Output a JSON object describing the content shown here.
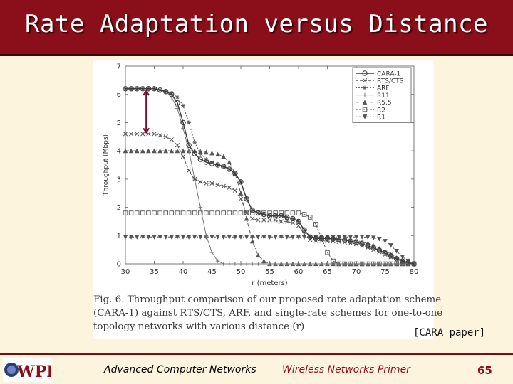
{
  "slide": {
    "title": "Rate Adaptation versus Distance",
    "source_label": "[CARA paper]",
    "footer_left": "Advanced Computer Networks",
    "footer_mid": "Wireless Networks Primer",
    "page_number": "65",
    "logo_text": "WPI"
  },
  "colors": {
    "title_bar": "#8b0f1a",
    "background": "#fcf4dd",
    "accent_arrow": "#7a1030"
  },
  "figure": {
    "caption_lines": [
      "Fig. 6.    Throughput comparison of our proposed rate adaptation scheme",
      "(CARA-1) against RTS/CTS, ARF, and single-rate schemes for one-to-one",
      "topology networks with various distance (r)"
    ]
  },
  "chart_data": {
    "type": "line",
    "xlabel": "r (meters)",
    "ylabel": "Throughput (Mbps)",
    "xlim": [
      30,
      80
    ],
    "ylim": [
      0,
      7
    ],
    "xticks": [
      30,
      35,
      40,
      45,
      50,
      55,
      60,
      65,
      70,
      75,
      80
    ],
    "yticks": [
      0,
      1,
      2,
      3,
      4,
      5,
      6,
      7
    ],
    "legend_position": "top-right",
    "grid": false,
    "annotation": "arrow between approx. 4.6 and 6.2 Mbps at r≈33",
    "x": [
      30,
      31,
      32,
      33,
      34,
      35,
      36,
      37,
      38,
      39,
      40,
      41,
      42,
      43,
      44,
      45,
      46,
      47,
      48,
      49,
      50,
      51,
      52,
      53,
      54,
      55,
      56,
      57,
      58,
      59,
      60,
      61,
      62,
      63,
      64,
      65,
      66,
      67,
      68,
      69,
      70,
      71,
      72,
      73,
      74,
      75,
      76,
      77,
      78,
      79,
      80
    ],
    "series": [
      {
        "name": "CARA-1",
        "marker": "circle",
        "values": [
          6.2,
          6.2,
          6.2,
          6.2,
          6.2,
          6.2,
          6.15,
          6.1,
          6.0,
          5.7,
          5.0,
          4.2,
          3.9,
          3.7,
          3.6,
          3.55,
          3.5,
          3.45,
          3.35,
          3.2,
          2.9,
          2.3,
          1.9,
          1.8,
          1.75,
          1.7,
          1.7,
          1.7,
          1.65,
          1.6,
          1.5,
          1.2,
          0.95,
          0.9,
          0.9,
          0.9,
          0.88,
          0.86,
          0.84,
          0.8,
          0.76,
          0.7,
          0.64,
          0.56,
          0.48,
          0.38,
          0.28,
          0.18,
          0.1,
          0.04,
          0.0
        ]
      },
      {
        "name": "RTS/CTS",
        "marker": "x",
        "values": [
          4.6,
          4.6,
          4.6,
          4.6,
          4.6,
          4.6,
          4.55,
          4.5,
          4.4,
          4.2,
          3.8,
          3.3,
          3.0,
          2.9,
          2.85,
          2.85,
          2.8,
          2.75,
          2.7,
          2.6,
          2.3,
          1.8,
          1.6,
          1.55,
          1.55,
          1.55,
          1.55,
          1.5,
          1.5,
          1.45,
          1.35,
          1.05,
          0.85,
          0.82,
          0.82,
          0.8,
          0.8,
          0.78,
          0.76,
          0.73,
          0.7,
          0.65,
          0.58,
          0.5,
          0.42,
          0.33,
          0.24,
          0.15,
          0.08,
          0.03,
          0.0
        ]
      },
      {
        "name": "ARF",
        "marker": "asterisk",
        "values": [
          6.2,
          6.2,
          6.2,
          6.2,
          6.2,
          6.2,
          6.15,
          6.1,
          6.05,
          5.9,
          5.6,
          5.0,
          4.3,
          3.9,
          3.7,
          3.6,
          3.5,
          3.45,
          3.35,
          3.2,
          2.9,
          2.3,
          1.9,
          1.8,
          1.75,
          1.7,
          1.7,
          1.7,
          1.65,
          1.6,
          1.5,
          1.2,
          0.95,
          0.9,
          0.9,
          0.9,
          0.9,
          0.88,
          0.86,
          0.84,
          0.82,
          0.78,
          0.72,
          0.64,
          0.55,
          0.45,
          0.34,
          0.22,
          0.12,
          0.05,
          0.0
        ]
      },
      {
        "name": "R11",
        "marker": "plus",
        "values": [
          6.2,
          6.2,
          6.2,
          6.2,
          6.2,
          6.2,
          6.15,
          6.1,
          5.9,
          5.5,
          4.8,
          4.0,
          3.0,
          2.0,
          1.0,
          0.4,
          0.1,
          0.0,
          0.0,
          0.0,
          0.0,
          0.0,
          0.0,
          0.0,
          0.0,
          0.0,
          0.0,
          0.0,
          0.0,
          0.0,
          0.0,
          0.0,
          0.0,
          0.0,
          0.0,
          0.0,
          0.0,
          0.0,
          0.0,
          0.0,
          0.0,
          0.0,
          0.0,
          0.0,
          0.0,
          0.0,
          0.0,
          0.0,
          0.0,
          0.0,
          0.0
        ]
      },
      {
        "name": "R5.5",
        "marker": "triangle-up",
        "values": [
          4.0,
          4.0,
          4.0,
          4.0,
          4.0,
          4.0,
          4.0,
          4.0,
          4.0,
          4.0,
          4.0,
          4.0,
          4.0,
          3.98,
          3.95,
          3.92,
          3.88,
          3.8,
          3.6,
          3.2,
          2.5,
          1.6,
          0.8,
          0.3,
          0.1,
          0.0,
          0.0,
          0.0,
          0.0,
          0.0,
          0.0,
          0.0,
          0.0,
          0.0,
          0.0,
          0.0,
          0.0,
          0.0,
          0.0,
          0.0,
          0.0,
          0.0,
          0.0,
          0.0,
          0.0,
          0.0,
          0.0,
          0.0,
          0.0,
          0.0,
          0.0
        ]
      },
      {
        "name": "R2",
        "marker": "square",
        "values": [
          1.8,
          1.8,
          1.8,
          1.8,
          1.8,
          1.8,
          1.8,
          1.8,
          1.8,
          1.8,
          1.8,
          1.8,
          1.8,
          1.8,
          1.8,
          1.8,
          1.8,
          1.8,
          1.8,
          1.8,
          1.8,
          1.8,
          1.8,
          1.8,
          1.8,
          1.8,
          1.8,
          1.8,
          1.8,
          1.8,
          1.8,
          1.75,
          1.65,
          1.4,
          0.9,
          0.4,
          0.1,
          0.0,
          0.0,
          0.0,
          0.0,
          0.0,
          0.0,
          0.0,
          0.0,
          0.0,
          0.0,
          0.0,
          0.0,
          0.0,
          0.0
        ]
      },
      {
        "name": "R1",
        "marker": "triangle-down",
        "values": [
          0.95,
          0.95,
          0.95,
          0.95,
          0.95,
          0.95,
          0.95,
          0.95,
          0.95,
          0.95,
          0.95,
          0.95,
          0.95,
          0.95,
          0.95,
          0.95,
          0.95,
          0.95,
          0.95,
          0.95,
          0.95,
          0.95,
          0.95,
          0.95,
          0.95,
          0.95,
          0.95,
          0.95,
          0.95,
          0.95,
          0.95,
          0.95,
          0.95,
          0.95,
          0.95,
          0.95,
          0.95,
          0.95,
          0.95,
          0.95,
          0.95,
          0.95,
          0.94,
          0.92,
          0.88,
          0.8,
          0.65,
          0.45,
          0.25,
          0.1,
          0.0
        ]
      }
    ]
  }
}
